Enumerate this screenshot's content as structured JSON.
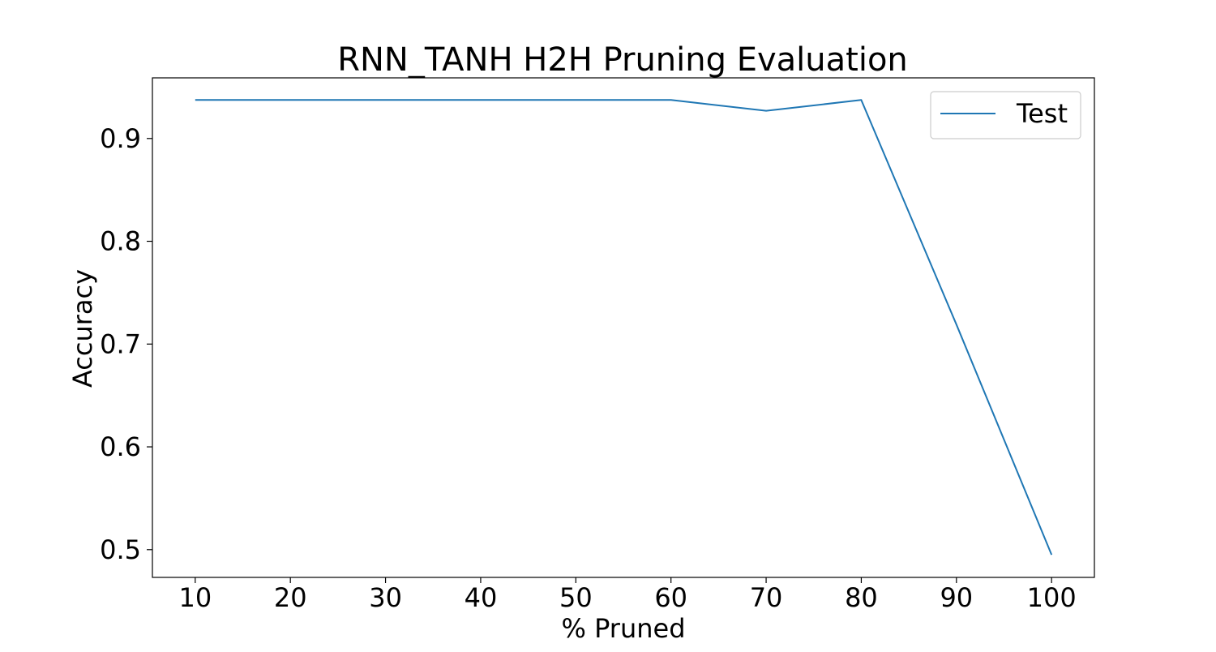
{
  "chart_data": {
    "type": "line",
    "title": "RNN_TANH H2H Pruning Evaluation",
    "xlabel": "% Pruned",
    "ylabel": "Accuracy",
    "x": [
      10,
      20,
      30,
      40,
      50,
      60,
      70,
      80,
      90,
      100
    ],
    "xticks": [
      "10",
      "20",
      "30",
      "40",
      "50",
      "60",
      "70",
      "80",
      "90",
      "100"
    ],
    "yticks": [
      "0.5",
      "0.6",
      "0.7",
      "0.8",
      "0.9"
    ],
    "xlim": [
      5.5,
      104.5
    ],
    "ylim": [
      0.473,
      0.959
    ],
    "grid": false,
    "legend_position": "top-right",
    "series": [
      {
        "name": "Test",
        "color": "#1f77b4",
        "values": [
          0.9375,
          0.9375,
          0.9375,
          0.9375,
          0.9375,
          0.9375,
          0.927,
          0.9375,
          0.719,
          0.495
        ]
      }
    ]
  }
}
